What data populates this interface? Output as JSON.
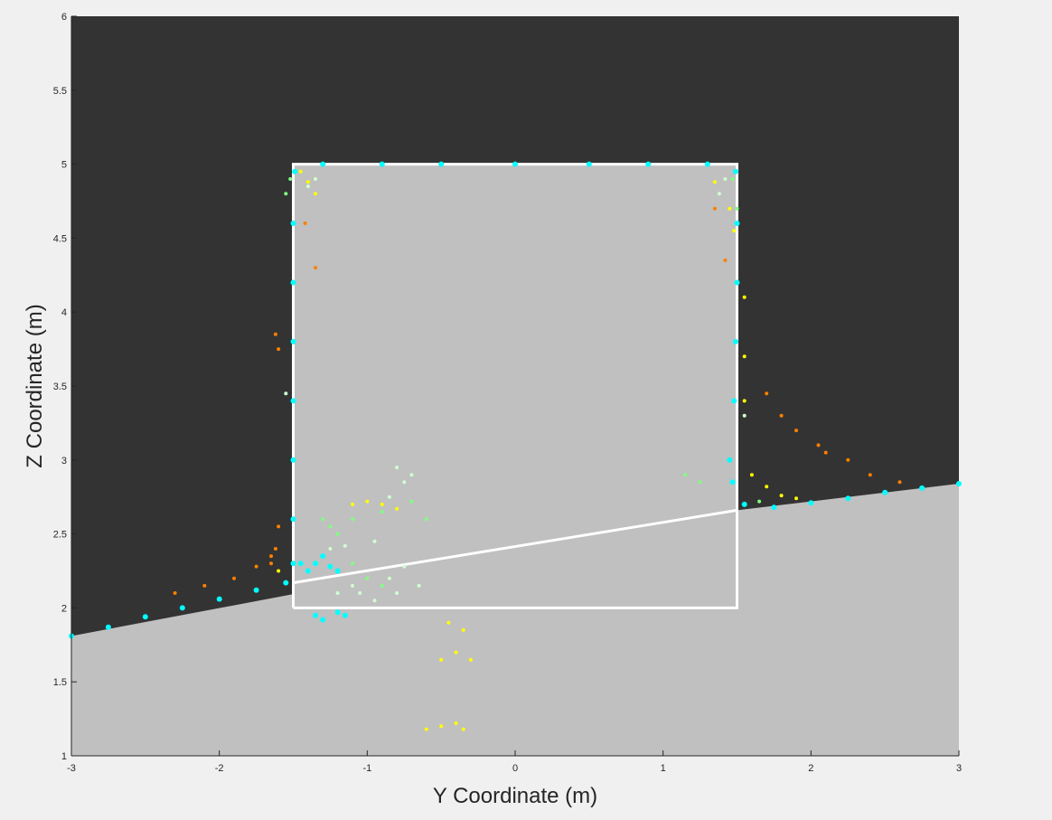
{
  "chart_data": {
    "type": "scatter",
    "xlabel": "Y Coordinate (m)",
    "ylabel": "Z Coordinate (m)",
    "xlim": [
      -3,
      3
    ],
    "ylim": [
      1,
      6
    ],
    "xticks": [
      "-3",
      "-2",
      "-1",
      "0",
      "1",
      "2",
      "3"
    ],
    "yticks": [
      "1",
      "1.5",
      "2",
      "2.5",
      "3",
      "3.5",
      "4",
      "4.5",
      "5",
      "5.5",
      "6"
    ],
    "grid": false,
    "legend": "none",
    "colors": {
      "background_dark": "#333333",
      "ground_fill": "#c0c0c0",
      "reference": "#ffffff",
      "cyan": "#00ffff",
      "yellow": "#ffff00",
      "orange": "#ff7f00",
      "green": "#80ff80",
      "pale": "#d0ffd0"
    },
    "regions": {
      "ground_line": [
        [
          -3,
          1.81
        ],
        [
          1.5,
          2.66
        ],
        [
          3,
          2.84
        ]
      ],
      "box": {
        "y": [
          -1.5,
          1.5
        ],
        "z": [
          2.0,
          5.0
        ]
      }
    },
    "reference_lines": [
      {
        "name": "frame",
        "points": [
          [
            -1.5,
            2.0
          ],
          [
            1.5,
            2.0
          ],
          [
            1.5,
            5.0
          ],
          [
            -1.5,
            5.0
          ],
          [
            -1.5,
            2.0
          ]
        ]
      },
      {
        "name": "slope",
        "points": [
          [
            -1.5,
            2.17
          ],
          [
            1.5,
            2.66
          ]
        ]
      }
    ],
    "series": [
      {
        "color": "cyan",
        "points": [
          [
            -3.0,
            1.81
          ],
          [
            -2.75,
            1.87
          ],
          [
            -2.5,
            1.94
          ],
          [
            -2.25,
            2.0
          ],
          [
            -2.0,
            2.06
          ],
          [
            -1.75,
            2.12
          ],
          [
            -1.55,
            2.17
          ],
          [
            -1.5,
            2.3
          ],
          [
            -1.5,
            2.6
          ],
          [
            -1.5,
            3.0
          ],
          [
            -1.5,
            3.4
          ],
          [
            -1.5,
            3.8
          ],
          [
            -1.5,
            4.2
          ],
          [
            -1.5,
            4.6
          ],
          [
            -1.49,
            4.95
          ],
          [
            -1.3,
            5.0
          ],
          [
            -0.9,
            5.0
          ],
          [
            -0.5,
            5.0
          ],
          [
            0.0,
            5.0
          ],
          [
            0.5,
            5.0
          ],
          [
            0.9,
            5.0
          ],
          [
            1.3,
            5.0
          ],
          [
            1.49,
            4.95
          ],
          [
            1.5,
            4.6
          ],
          [
            1.5,
            4.2
          ],
          [
            1.49,
            3.8
          ],
          [
            1.48,
            3.4
          ],
          [
            1.45,
            3.0
          ],
          [
            1.47,
            2.85
          ],
          [
            1.55,
            2.7
          ],
          [
            1.75,
            2.68
          ],
          [
            2.0,
            2.71
          ],
          [
            2.25,
            2.74
          ],
          [
            2.5,
            2.78
          ],
          [
            2.75,
            2.81
          ],
          [
            3.0,
            2.84
          ],
          [
            -1.45,
            2.3
          ],
          [
            -1.4,
            2.25
          ],
          [
            -1.35,
            2.3
          ],
          [
            -1.3,
            2.35
          ],
          [
            -1.25,
            2.28
          ],
          [
            -1.2,
            2.25
          ],
          [
            -1.35,
            1.95
          ],
          [
            -1.3,
            1.92
          ],
          [
            -1.2,
            1.97
          ],
          [
            -1.15,
            1.95
          ]
        ]
      },
      {
        "color": "yellow",
        "points": [
          [
            -1.45,
            4.95
          ],
          [
            -1.4,
            4.88
          ],
          [
            -1.35,
            4.8
          ],
          [
            1.35,
            4.88
          ],
          [
            1.45,
            4.7
          ],
          [
            1.48,
            4.55
          ],
          [
            1.55,
            4.1
          ],
          [
            1.55,
            3.7
          ],
          [
            1.55,
            3.4
          ],
          [
            1.6,
            2.9
          ],
          [
            1.7,
            2.82
          ],
          [
            1.8,
            2.76
          ],
          [
            1.9,
            2.74
          ],
          [
            -1.6,
            2.25
          ],
          [
            -1.1,
            2.7
          ],
          [
            -1.0,
            2.72
          ],
          [
            -0.9,
            2.7
          ],
          [
            -0.8,
            2.67
          ],
          [
            -0.45,
            1.9
          ],
          [
            -0.35,
            1.85
          ],
          [
            -0.4,
            1.7
          ],
          [
            -0.3,
            1.65
          ],
          [
            -0.5,
            1.65
          ],
          [
            -0.6,
            1.18
          ],
          [
            -0.5,
            1.2
          ],
          [
            -0.4,
            1.22
          ],
          [
            -0.35,
            1.18
          ]
        ]
      },
      {
        "color": "orange",
        "points": [
          [
            -2.3,
            2.1
          ],
          [
            -2.1,
            2.15
          ],
          [
            -1.9,
            2.2
          ],
          [
            -1.75,
            2.28
          ],
          [
            -1.65,
            2.3
          ],
          [
            -1.62,
            2.4
          ],
          [
            -1.6,
            2.55
          ],
          [
            -1.65,
            2.35
          ],
          [
            -1.62,
            3.85
          ],
          [
            -1.6,
            3.75
          ],
          [
            -1.42,
            4.6
          ],
          [
            -1.35,
            4.3
          ],
          [
            1.35,
            4.7
          ],
          [
            1.42,
            4.35
          ],
          [
            1.7,
            3.45
          ],
          [
            1.8,
            3.3
          ],
          [
            1.9,
            3.2
          ],
          [
            2.05,
            3.1
          ],
          [
            2.1,
            3.05
          ],
          [
            2.25,
            3.0
          ],
          [
            2.4,
            2.9
          ],
          [
            2.6,
            2.85
          ]
        ]
      },
      {
        "color": "green",
        "points": [
          [
            -1.52,
            4.9
          ],
          [
            -1.55,
            4.8
          ],
          [
            1.47,
            4.9
          ],
          [
            1.5,
            4.7
          ],
          [
            1.65,
            2.72
          ],
          [
            -1.3,
            2.6
          ],
          [
            -1.2,
            2.5
          ],
          [
            -1.25,
            2.55
          ],
          [
            -1.1,
            2.6
          ],
          [
            -0.9,
            2.65
          ],
          [
            -0.7,
            2.72
          ],
          [
            -0.6,
            2.6
          ],
          [
            1.15,
            2.9
          ],
          [
            1.25,
            2.85
          ],
          [
            -1.1,
            2.3
          ],
          [
            -1.0,
            2.2
          ],
          [
            -0.9,
            2.15
          ]
        ]
      },
      {
        "color": "pale",
        "points": [
          [
            -1.2,
            2.1
          ],
          [
            -1.1,
            2.15
          ],
          [
            -1.05,
            2.1
          ],
          [
            -0.95,
            2.05
          ],
          [
            -0.85,
            2.2
          ],
          [
            -0.8,
            2.1
          ],
          [
            -0.75,
            2.28
          ],
          [
            -0.65,
            2.15
          ],
          [
            -0.8,
            2.95
          ],
          [
            -0.75,
            2.85
          ],
          [
            -0.85,
            2.75
          ],
          [
            -0.7,
            2.9
          ],
          [
            -1.25,
            2.4
          ],
          [
            -1.15,
            2.42
          ],
          [
            -0.95,
            2.45
          ],
          [
            -1.4,
            4.85
          ],
          [
            -1.35,
            4.9
          ],
          [
            1.38,
            4.8
          ],
          [
            1.42,
            4.9
          ],
          [
            -1.55,
            3.45
          ],
          [
            1.55,
            3.3
          ]
        ]
      }
    ]
  }
}
